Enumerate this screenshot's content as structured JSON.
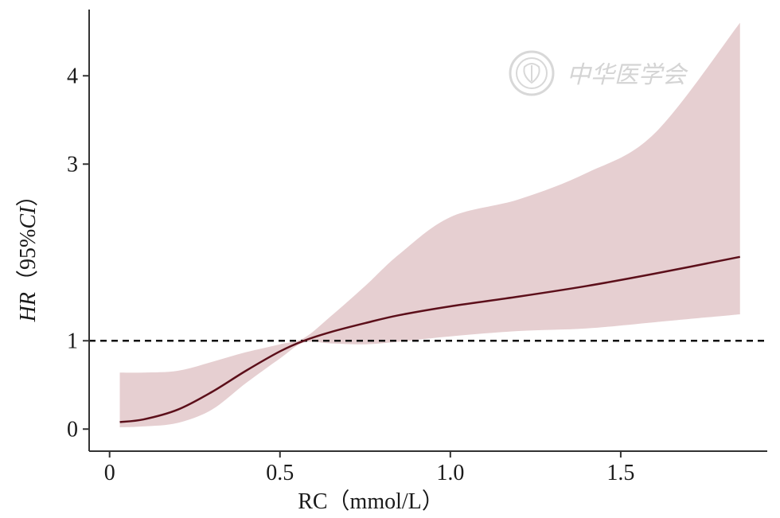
{
  "chart_data": {
    "type": "line",
    "title": "",
    "xlabel": "RC（mmol/L）",
    "ylabel_prefix": "HR",
    "ylabel_open": "（",
    "ylabel_mid": "95%",
    "ylabel_italic": "CI",
    "ylabel_close": "）",
    "xlim": [
      -0.06,
      1.93
    ],
    "ylim": [
      -0.25,
      4.75
    ],
    "xticks": [
      0,
      0.5,
      1.0,
      1.5
    ],
    "xtick_labels": [
      "0",
      "0.5",
      "1.0",
      "1.5"
    ],
    "yticks": [
      0,
      1,
      3,
      4
    ],
    "ytick_labels": [
      "0",
      "1",
      "3",
      "4"
    ],
    "reference_line": {
      "y": 1,
      "style": "dashed"
    },
    "grid": false,
    "series": [
      {
        "type": "line",
        "color": "#5c0f1a",
        "x": [
          0.03,
          0.1,
          0.2,
          0.3,
          0.4,
          0.5,
          0.57,
          0.65,
          0.75,
          0.85,
          1.0,
          1.2,
          1.4,
          1.6,
          1.85
        ],
        "y": [
          0.08,
          0.11,
          0.22,
          0.42,
          0.66,
          0.88,
          1.0,
          1.1,
          1.2,
          1.29,
          1.39,
          1.5,
          1.62,
          1.76,
          1.95
        ]
      }
    ],
    "band": {
      "color": "#e6cfd1",
      "x": [
        0.03,
        0.1,
        0.2,
        0.3,
        0.4,
        0.5,
        0.57,
        0.65,
        0.75,
        0.85,
        1.0,
        1.2,
        1.4,
        1.6,
        1.85
      ],
      "lower": [
        0.02,
        0.03,
        0.07,
        0.22,
        0.52,
        0.8,
        0.98,
        0.97,
        0.96,
        0.99,
        1.05,
        1.11,
        1.14,
        1.21,
        1.3
      ],
      "upper": [
        0.64,
        0.64,
        0.66,
        0.76,
        0.87,
        0.96,
        1.03,
        1.28,
        1.62,
        1.98,
        2.4,
        2.6,
        2.9,
        3.35,
        4.6
      ]
    }
  },
  "watermark": {
    "text": "中华医学会",
    "icon": "society-seal-icon"
  }
}
